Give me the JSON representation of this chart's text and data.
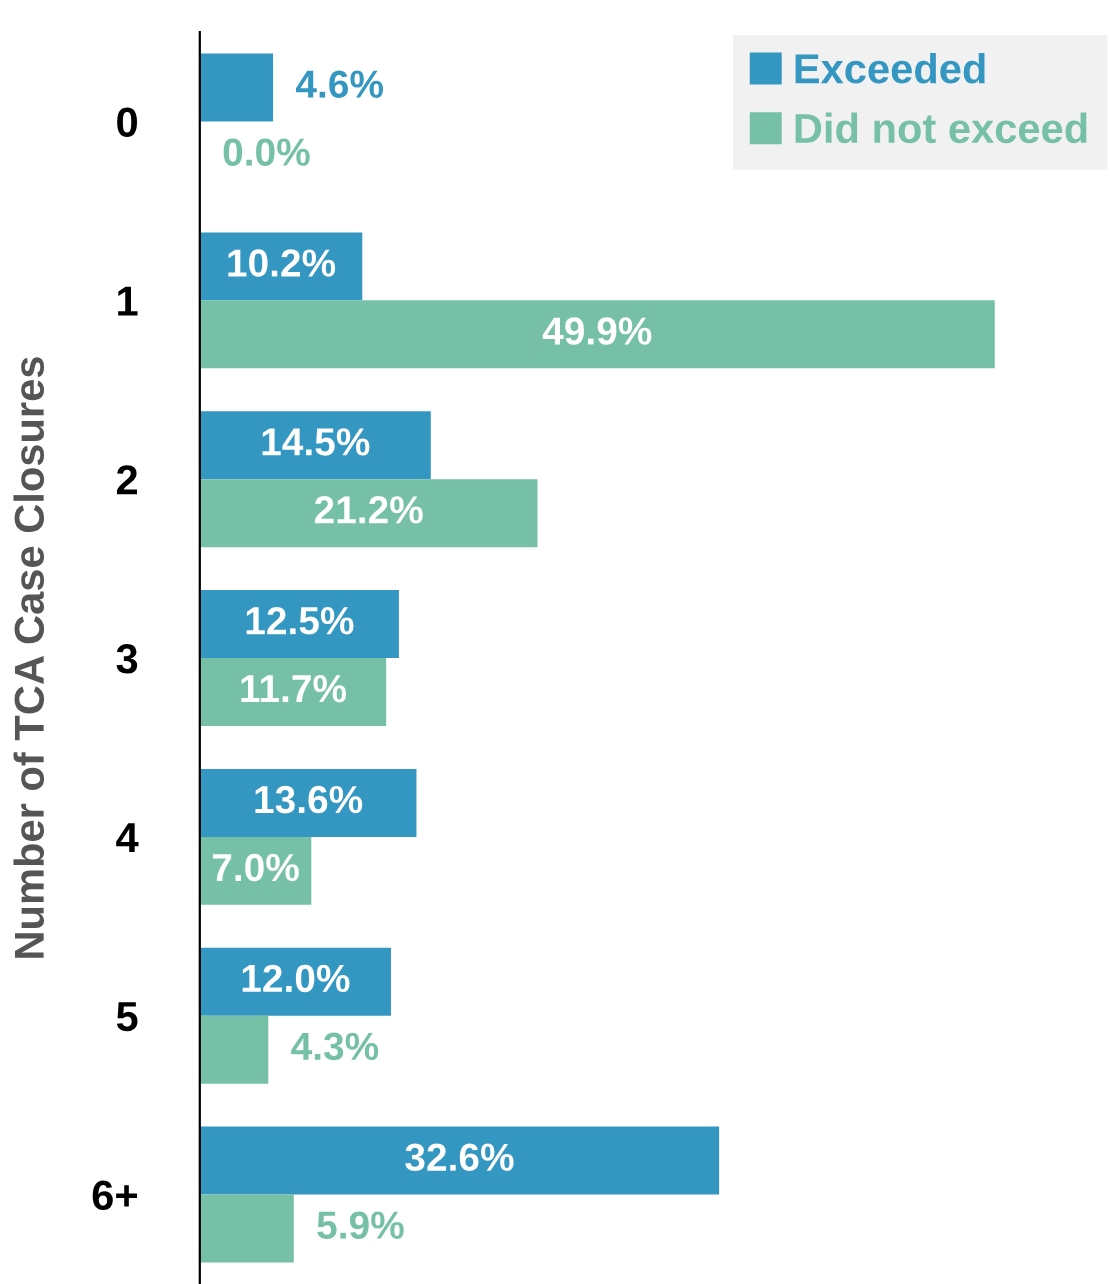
{
  "chart_data": {
    "type": "bar",
    "orientation": "horizontal",
    "ylabel": "Number of TCA Case Closures",
    "categories": [
      "0",
      "1",
      "2",
      "3",
      "4",
      "5",
      "6+"
    ],
    "series": [
      {
        "name": "Exceeded",
        "color": "#3497c1",
        "values": [
          4.6,
          10.2,
          14.5,
          12.5,
          13.6,
          12.0,
          32.6
        ],
        "value_labels": [
          "4.6%",
          "10.2%",
          "14.5%",
          "12.5%",
          "13.6%",
          "12.0%",
          "32.6%"
        ]
      },
      {
        "name": "Did not exceed",
        "color": "#76c0a8",
        "values": [
          0.0,
          49.9,
          21.2,
          11.7,
          7.0,
          4.3,
          5.9
        ],
        "value_labels": [
          "0.0%",
          "49.9%",
          "21.2%",
          "11.7%",
          "7.0%",
          "4.3%",
          "5.9%"
        ]
      }
    ],
    "tick_labels": "y",
    "legend": "top right"
  }
}
